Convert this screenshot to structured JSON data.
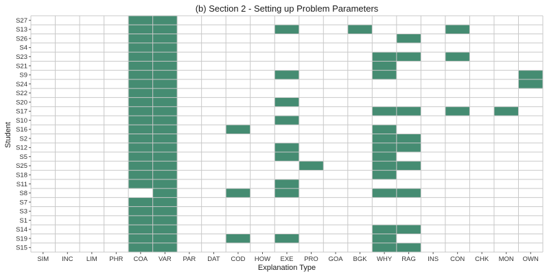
{
  "chart_data": {
    "type": "heatmap",
    "title": "(b) Section 2 - Setting up Problem Parameters",
    "xlabel": "Explanation Type",
    "ylabel": "Student",
    "x_categories": [
      "SIM",
      "INC",
      "LIM",
      "PHR",
      "COA",
      "VAR",
      "PAR",
      "DAT",
      "COD",
      "HOW",
      "EXE",
      "PRO",
      "GOA",
      "BGK",
      "WHY",
      "RAG",
      "INS",
      "CON",
      "CHK",
      "MON",
      "OWN"
    ],
    "y_categories": [
      "S27",
      "S13",
      "S26",
      "S4",
      "S23",
      "S21",
      "S9",
      "S24",
      "S22",
      "S20",
      "S17",
      "S10",
      "S16",
      "S2",
      "S12",
      "S5",
      "S25",
      "S18",
      "S11",
      "S8",
      "S7",
      "S3",
      "S1",
      "S14",
      "S19",
      "S15"
    ],
    "cells": {
      "S27": [
        "COA",
        "VAR"
      ],
      "S13": [
        "COA",
        "VAR",
        "EXE",
        "BGK",
        "CON"
      ],
      "S26": [
        "COA",
        "VAR",
        "RAG"
      ],
      "S4": [
        "COA",
        "VAR"
      ],
      "S23": [
        "COA",
        "VAR",
        "WHY",
        "RAG",
        "CON"
      ],
      "S21": [
        "COA",
        "VAR",
        "WHY"
      ],
      "S9": [
        "COA",
        "VAR",
        "EXE",
        "WHY",
        "OWN"
      ],
      "S24": [
        "COA",
        "VAR",
        "OWN"
      ],
      "S22": [
        "COA",
        "VAR"
      ],
      "S20": [
        "COA",
        "VAR",
        "EXE"
      ],
      "S17": [
        "COA",
        "VAR",
        "WHY",
        "RAG",
        "CON",
        "MON"
      ],
      "S10": [
        "COA",
        "VAR",
        "EXE"
      ],
      "S16": [
        "COA",
        "VAR",
        "COD",
        "WHY"
      ],
      "S2": [
        "COA",
        "VAR",
        "WHY",
        "RAG"
      ],
      "S12": [
        "COA",
        "VAR",
        "EXE",
        "WHY",
        "RAG"
      ],
      "S5": [
        "COA",
        "VAR",
        "EXE",
        "WHY"
      ],
      "S25": [
        "COA",
        "VAR",
        "PRO",
        "WHY",
        "RAG"
      ],
      "S18": [
        "COA",
        "VAR",
        "WHY"
      ],
      "S11": [
        "COA",
        "VAR",
        "EXE"
      ],
      "S8": [
        "VAR",
        "COD",
        "EXE",
        "WHY",
        "RAG"
      ],
      "S7": [
        "COA",
        "VAR"
      ],
      "S3": [
        "COA",
        "VAR"
      ],
      "S1": [
        "COA",
        "VAR"
      ],
      "S14": [
        "COA",
        "VAR",
        "WHY",
        "RAG"
      ],
      "S19": [
        "COA",
        "VAR",
        "COD",
        "EXE",
        "WHY"
      ],
      "S15": [
        "COA",
        "VAR",
        "WHY",
        "RAG"
      ]
    },
    "fill_color": "#458c72",
    "empty_color": "#ffffff",
    "grid": true,
    "grid_color": "#c8c8c8"
  }
}
